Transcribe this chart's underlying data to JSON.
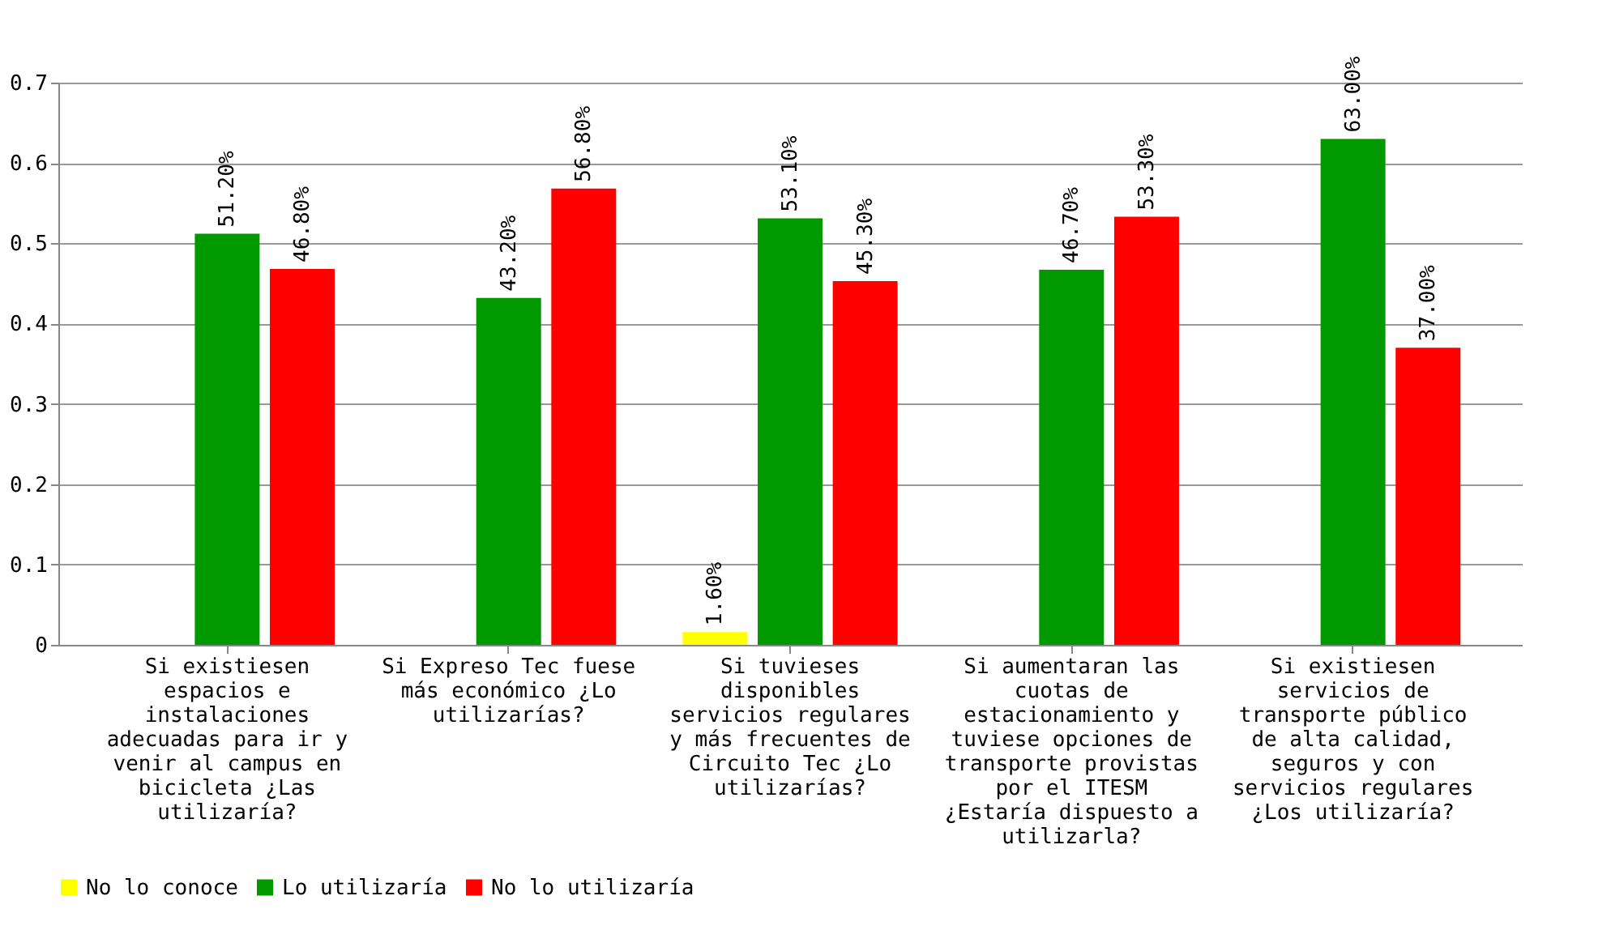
{
  "chart_data": {
    "type": "bar",
    "categories": [
      "Si existiesen espacios e instalaciones adecuadas para ir y venir al campus en bicicleta ¿Las utilizaría?",
      "Si Expreso Tec fuese más económico ¿Lo utilizarías?",
      "Si tuvieses disponibles servicios regulares y más frecuentes de Circuito Tec ¿Lo utilizarías?",
      "Si aumentaran las cuotas de estacionamiento y tuviese opciones de transporte provistas por el ITESM ¿Estaría dispuesto a utilizarla?",
      "Si existiesen servicios de transporte público de alta calidad, seguros y con servicios regulares ¿Los utilizaría?"
    ],
    "series": [
      {
        "name": "No lo conoce",
        "color": "#ffff00",
        "values": [
          null,
          null,
          0.016,
          null,
          null
        ],
        "value_labels": [
          null,
          null,
          "1.60%",
          null,
          null
        ]
      },
      {
        "name": "Lo utilizaría",
        "color": "#009900",
        "values": [
          0.512,
          0.432,
          0.531,
          0.467,
          0.63
        ],
        "value_labels": [
          "51.20%",
          "43.20%",
          "53.10%",
          "46.70%",
          "63.00%"
        ]
      },
      {
        "name": "No lo utilizaría",
        "color": "#ff0000",
        "values": [
          0.468,
          0.568,
          0.453,
          0.533,
          0.37
        ],
        "value_labels": [
          "46.80%",
          "56.80%",
          "45.30%",
          "53.30%",
          "37.00%"
        ]
      }
    ],
    "ylim": [
      0,
      0.7
    ],
    "yticks": [
      0,
      0.1,
      0.2,
      0.3,
      0.4,
      0.5,
      0.6,
      0.7
    ],
    "grid": "y",
    "legend": "bottom"
  }
}
